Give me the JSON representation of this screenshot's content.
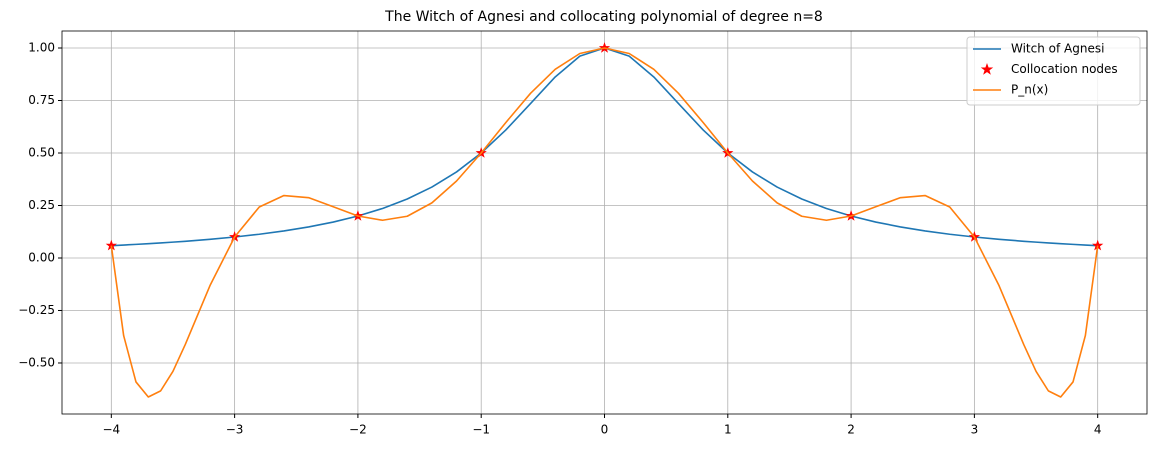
{
  "chart_data": {
    "type": "line",
    "title": "The Witch of Agnesi and collocating polynomial of degree n=8",
    "x": [
      -4,
      -3.9,
      -3.8,
      -3.7,
      -3.6,
      -3.5,
      -3.4,
      -3.2,
      -3,
      -2.8,
      -2.6,
      -2.4,
      -2.2,
      -2,
      -1.8,
      -1.6,
      -1.4,
      -1.2,
      -1,
      -0.8,
      -0.6,
      -0.4,
      -0.2,
      0,
      0.2,
      0.4,
      0.6,
      0.8,
      1,
      1.2,
      1.4,
      1.6,
      1.8,
      2,
      2.2,
      2.4,
      2.6,
      2.8,
      3,
      3.2,
      3.4,
      3.5,
      3.6,
      3.7,
      3.8,
      3.9,
      4
    ],
    "series": [
      {
        "name": "Witch of Agnesi",
        "color": "#1f77b4",
        "values": [
          0.0588,
          0.0617,
          0.0648,
          0.0681,
          0.0716,
          0.0755,
          0.0796,
          0.089,
          0.1,
          0.1131,
          0.1289,
          0.1479,
          0.1712,
          0.2,
          0.2358,
          0.2809,
          0.3378,
          0.4098,
          0.5,
          0.6098,
          0.7353,
          0.8621,
          0.9615,
          1,
          0.9615,
          0.8621,
          0.7353,
          0.6098,
          0.5,
          0.4098,
          0.3378,
          0.2809,
          0.2358,
          0.2,
          0.1712,
          0.1479,
          0.1289,
          0.1131,
          0.1,
          0.089,
          0.0796,
          0.0755,
          0.0716,
          0.0681,
          0.0648,
          0.0617,
          0.0588
        ]
      },
      {
        "name": "Collocation nodes",
        "color": "#ff0000",
        "marker": "star",
        "x": [
          -4,
          -3,
          -2,
          -1,
          0,
          1,
          2,
          3,
          4
        ],
        "values": [
          0.0588,
          0.1,
          0.2,
          0.5,
          1,
          0.5,
          0.2,
          0.1,
          0.0588
        ]
      },
      {
        "name": "P_n(x)",
        "color": "#ff7f0e",
        "values": [
          0.0588,
          -0.3696,
          -0.5903,
          -0.662,
          -0.6329,
          -0.5397,
          -0.4117,
          -0.1317,
          0.1,
          0.2428,
          0.2975,
          0.2872,
          0.2442,
          0.2,
          0.1796,
          0.1987,
          0.2624,
          0.3668,
          0.5,
          0.6454,
          0.7843,
          0.8987,
          0.9738,
          1,
          0.9738,
          0.8987,
          0.7843,
          0.6454,
          0.5,
          0.3668,
          0.2624,
          0.1987,
          0.1796,
          0.2,
          0.2442,
          0.2872,
          0.2975,
          0.2428,
          0.1,
          -0.1317,
          -0.4117,
          -0.5397,
          -0.6329,
          -0.662,
          -0.5903,
          -0.3696,
          0.0588
        ]
      }
    ],
    "xlim": [
      -4.4,
      4.4
    ],
    "ylim": [
      -0.743,
      1.081
    ],
    "xticks": [
      {
        "value": -4,
        "label": "−4"
      },
      {
        "value": -3,
        "label": "−3"
      },
      {
        "value": -2,
        "label": "−2"
      },
      {
        "value": -1,
        "label": "−1"
      },
      0,
      1,
      2,
      3,
      4
    ],
    "yticks": [
      {
        "value": -0.5,
        "label": "−0.50"
      },
      {
        "value": -0.25,
        "label": "−0.25"
      },
      {
        "value": 0,
        "label": "0.00"
      },
      {
        "value": 0.25,
        "label": "0.25"
      },
      {
        "value": 0.5,
        "label": "0.50"
      },
      {
        "value": 0.75,
        "label": "0.75"
      },
      {
        "value": 1,
        "label": "1.00"
      }
    ],
    "grid": true,
    "legend": "upper right"
  }
}
